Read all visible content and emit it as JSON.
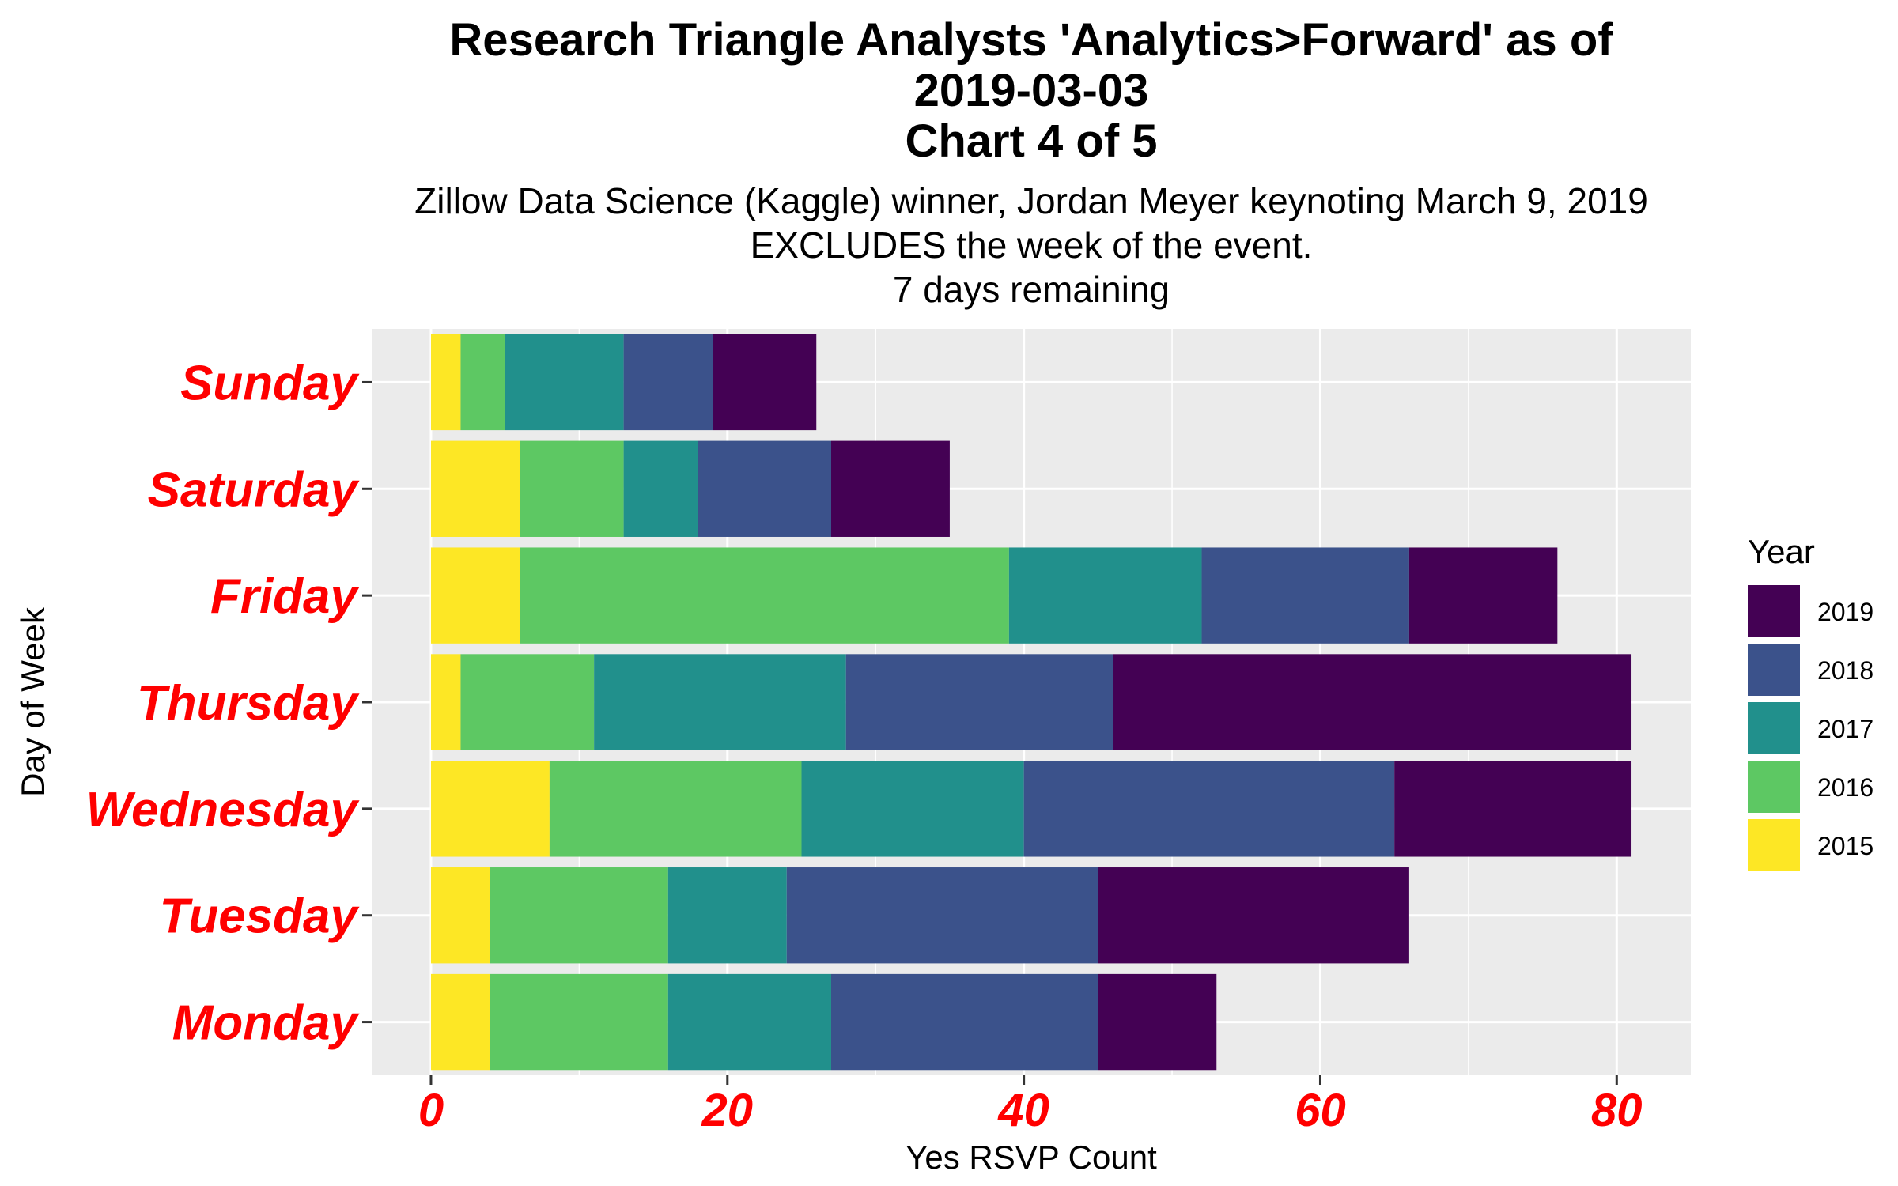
{
  "chart_data": {
    "type": "bar",
    "orientation": "horizontal",
    "stacked": true,
    "title_lines": [
      "Research Triangle Analysts 'Analytics>Forward' as of",
      "2019-03-03",
      "Chart 4 of 5"
    ],
    "subtitle_lines": [
      "Zillow Data Science (Kaggle) winner, Jordan Meyer keynoting March 9, 2019",
      "EXCLUDES the week of the event.",
      "7 days remaining"
    ],
    "xlabel": "Yes RSVP Count",
    "ylabel": "Day of Week",
    "xlim": [
      -4,
      85
    ],
    "x_ticks": [
      0,
      20,
      40,
      60,
      80
    ],
    "categories": [
      "Monday",
      "Tuesday",
      "Wednesday",
      "Thursday",
      "Friday",
      "Saturday",
      "Sunday"
    ],
    "series": [
      {
        "name": "2015",
        "color": "#FDE725",
        "values": [
          4,
          4,
          8,
          2,
          6,
          6,
          2
        ]
      },
      {
        "name": "2016",
        "color": "#5DC863",
        "values": [
          12,
          12,
          17,
          9,
          33,
          7,
          3
        ]
      },
      {
        "name": "2017",
        "color": "#21908C",
        "values": [
          11,
          8,
          15,
          17,
          13,
          5,
          8
        ]
      },
      {
        "name": "2018",
        "color": "#3B528B",
        "values": [
          18,
          21,
          25,
          18,
          14,
          9,
          6
        ]
      },
      {
        "name": "2019",
        "color": "#440154",
        "values": [
          8,
          21,
          16,
          35,
          10,
          8,
          7
        ]
      }
    ],
    "legend": {
      "title": "Year",
      "position": "right",
      "order": [
        "2019",
        "2018",
        "2017",
        "2016",
        "2015"
      ]
    },
    "grid": true,
    "panel_background": "#EBEBEB",
    "grid_color": "#FFFFFF",
    "label_color": "#FF0000"
  }
}
